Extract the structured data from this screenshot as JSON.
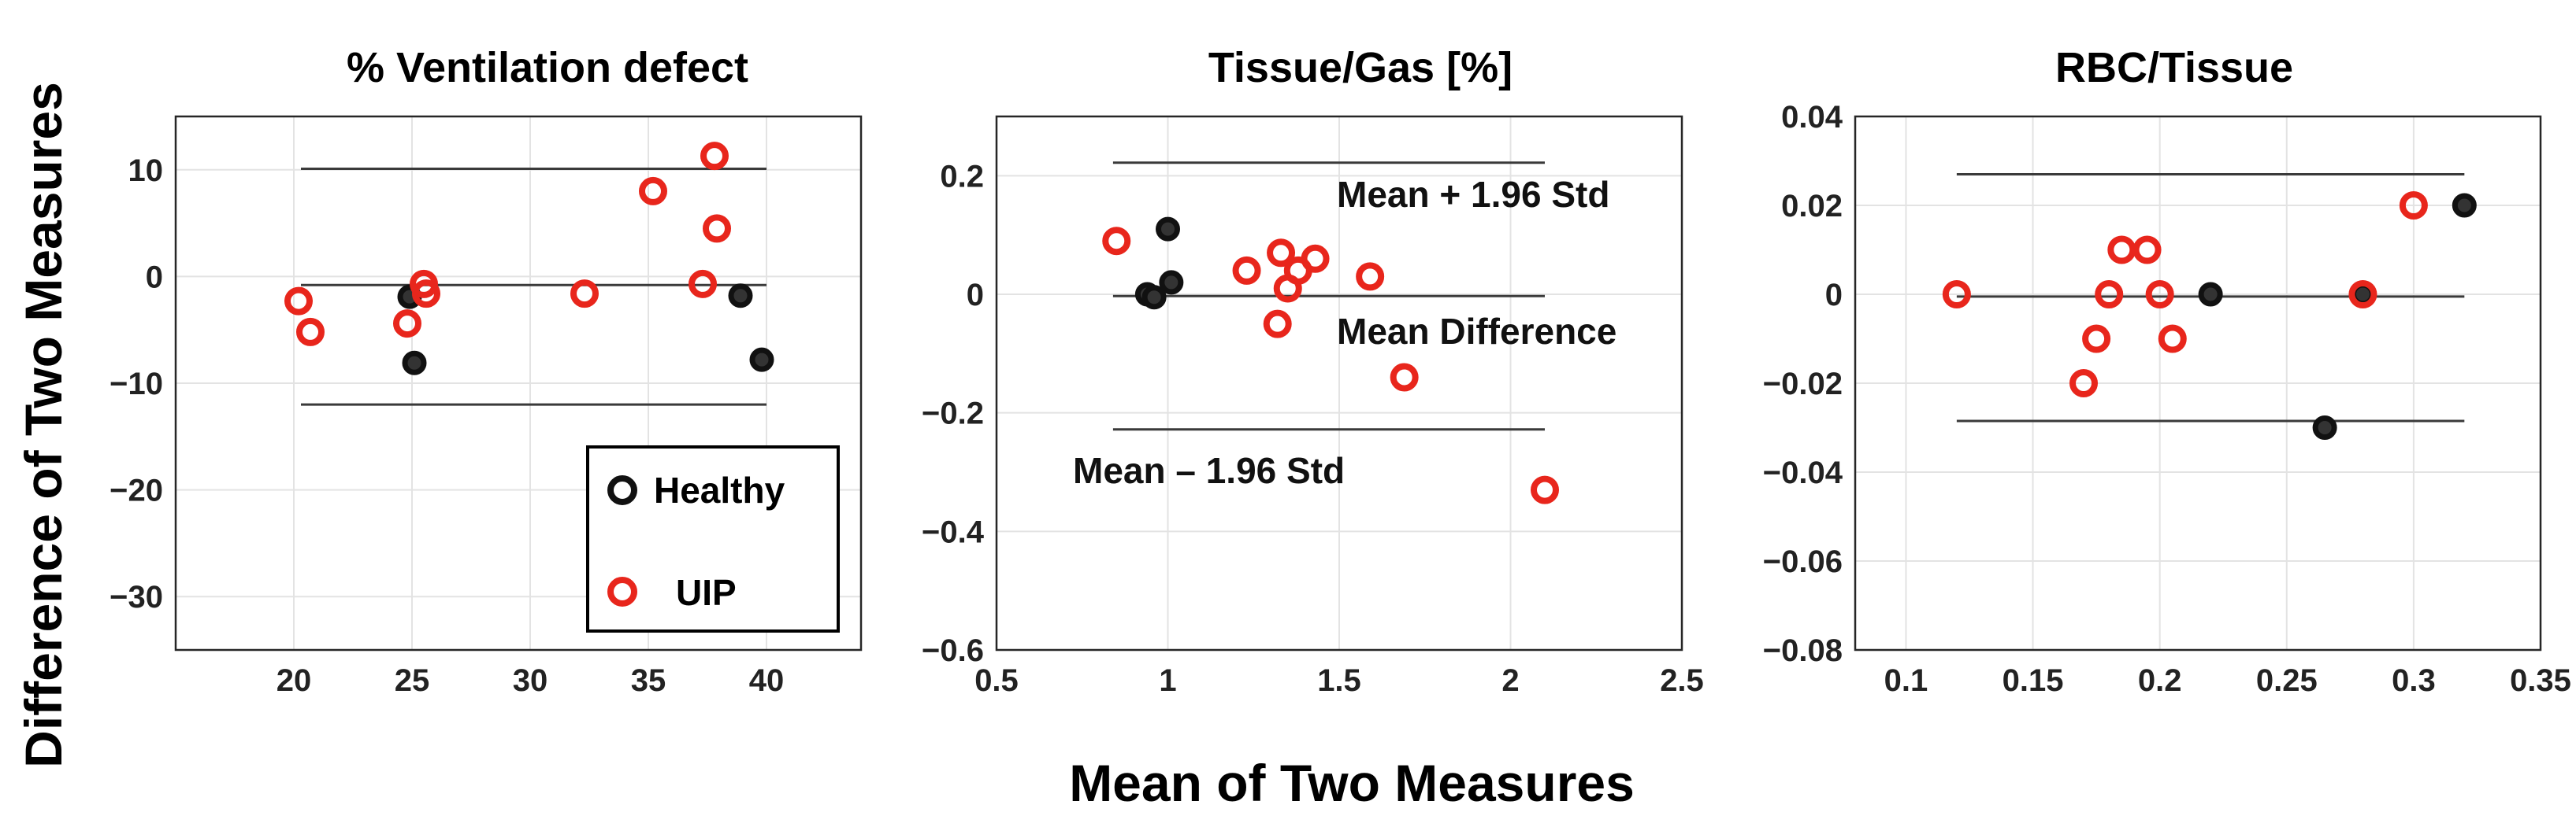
{
  "figure": {
    "ylabel": "Difference of Two Measures",
    "xlabel": "Mean of Two Measures"
  },
  "colors": {
    "healthy": "#111111",
    "uip": "#e8261c"
  },
  "legend": {
    "healthy": "Healthy",
    "uip": "UIP"
  },
  "annotations": {
    "upper": "Mean + 1.96 Std",
    "mean": "Mean Difference",
    "lower": "Mean – 1.96 Std"
  },
  "chart_data": [
    {
      "type": "scatter",
      "title": "% Ventilation defect",
      "xlim": [
        15,
        44
      ],
      "ylim": [
        -35,
        15
      ],
      "xticks": [
        20,
        25,
        30,
        35,
        40
      ],
      "yticks": [
        -30,
        -20,
        -10,
        0,
        10
      ],
      "xtick_labels": [
        "20",
        "25",
        "30",
        "35",
        "40"
      ],
      "ytick_labels": [
        "−30",
        "−20",
        "−10",
        "0",
        "10"
      ],
      "mean_line": {
        "value": -0.8,
        "x_range": [
          20.3,
          40
        ]
      },
      "upper_line": {
        "value": 10.1,
        "x_range": [
          20.3,
          40
        ]
      },
      "lower_line": {
        "value": -12,
        "x_range": [
          20.3,
          40
        ]
      },
      "series": [
        {
          "name": "Healthy",
          "points": [
            [
              24.9,
              -1.9
            ],
            [
              25.1,
              -8.1
            ],
            [
              38.9,
              -1.8
            ],
            [
              39.8,
              -7.8
            ]
          ]
        },
        {
          "name": "UIP",
          "points": [
            [
              20.2,
              -2.3
            ],
            [
              20.7,
              -5.2
            ],
            [
              24.8,
              -4.4
            ],
            [
              25.5,
              -0.7
            ],
            [
              25.6,
              -1.6
            ],
            [
              32.3,
              -1.6
            ],
            [
              35.2,
              8.0
            ],
            [
              37.3,
              -0.7
            ],
            [
              37.8,
              11.3
            ],
            [
              37.9,
              4.5
            ]
          ]
        }
      ]
    },
    {
      "type": "scatter",
      "title": "Tissue/Gas [%]",
      "xlim": [
        0.5,
        2.5
      ],
      "ylim": [
        -0.6,
        0.3
      ],
      "xticks": [
        0.5,
        1,
        1.5,
        2,
        2.5
      ],
      "yticks": [
        -0.6,
        -0.4,
        -0.2,
        0,
        0.2
      ],
      "xtick_labels": [
        "0.5",
        "1",
        "1.5",
        "2",
        "2.5"
      ],
      "ytick_labels": [
        "−0.6",
        "−0.4",
        "−0.2",
        "0",
        "0.2"
      ],
      "mean_line": {
        "value": -0.003,
        "x_range": [
          0.84,
          2.1
        ]
      },
      "upper_line": {
        "value": 0.222,
        "x_range": [
          0.84,
          2.1
        ]
      },
      "lower_line": {
        "value": -0.228,
        "x_range": [
          0.84,
          2.1
        ]
      },
      "series": [
        {
          "name": "Healthy",
          "points": [
            [
              0.94,
              0.0
            ],
            [
              0.96,
              -0.005
            ],
            [
              1.0,
              0.11
            ],
            [
              1.01,
              0.02
            ]
          ]
        },
        {
          "name": "UIP",
          "points": [
            [
              0.85,
              0.09
            ],
            [
              1.23,
              0.04
            ],
            [
              1.32,
              -0.05
            ],
            [
              1.33,
              0.07
            ],
            [
              1.35,
              0.01
            ],
            [
              1.38,
              0.04
            ],
            [
              1.43,
              0.06
            ],
            [
              1.59,
              0.03
            ],
            [
              1.69,
              -0.14
            ],
            [
              2.1,
              -0.33
            ]
          ]
        }
      ]
    },
    {
      "type": "scatter",
      "title": "RBC/Tissue",
      "xlim": [
        0.08,
        0.35
      ],
      "ylim": [
        -0.08,
        0.04
      ],
      "xticks": [
        0.1,
        0.15,
        0.2,
        0.25,
        0.3,
        0.35
      ],
      "yticks": [
        -0.08,
        -0.06,
        -0.04,
        -0.02,
        0,
        0.02,
        0.04
      ],
      "xtick_labels": [
        "0.1",
        "0.15",
        "0.2",
        "0.25",
        "0.3",
        "0.35"
      ],
      "ytick_labels": [
        "−0.08",
        "−0.06",
        "−0.04",
        "−0.02",
        "0",
        "0.02",
        "0.04"
      ],
      "mean_line": {
        "value": -0.0005,
        "x_range": [
          0.12,
          0.32
        ]
      },
      "upper_line": {
        "value": 0.027,
        "x_range": [
          0.12,
          0.32
        ]
      },
      "lower_line": {
        "value": -0.0285,
        "x_range": [
          0.12,
          0.32
        ]
      },
      "series": [
        {
          "name": "Healthy",
          "points": [
            [
              0.22,
              0.0
            ],
            [
              0.265,
              -0.03
            ],
            [
              0.28,
              0.0
            ],
            [
              0.32,
              0.02
            ]
          ]
        },
        {
          "name": "UIP",
          "points": [
            [
              0.12,
              0.0
            ],
            [
              0.17,
              -0.02
            ],
            [
              0.175,
              -0.01
            ],
            [
              0.18,
              0.0
            ],
            [
              0.185,
              0.01
            ],
            [
              0.195,
              0.01
            ],
            [
              0.2,
              0.0
            ],
            [
              0.205,
              -0.01
            ],
            [
              0.28,
              0.0
            ],
            [
              0.3,
              0.02
            ]
          ]
        }
      ]
    }
  ]
}
